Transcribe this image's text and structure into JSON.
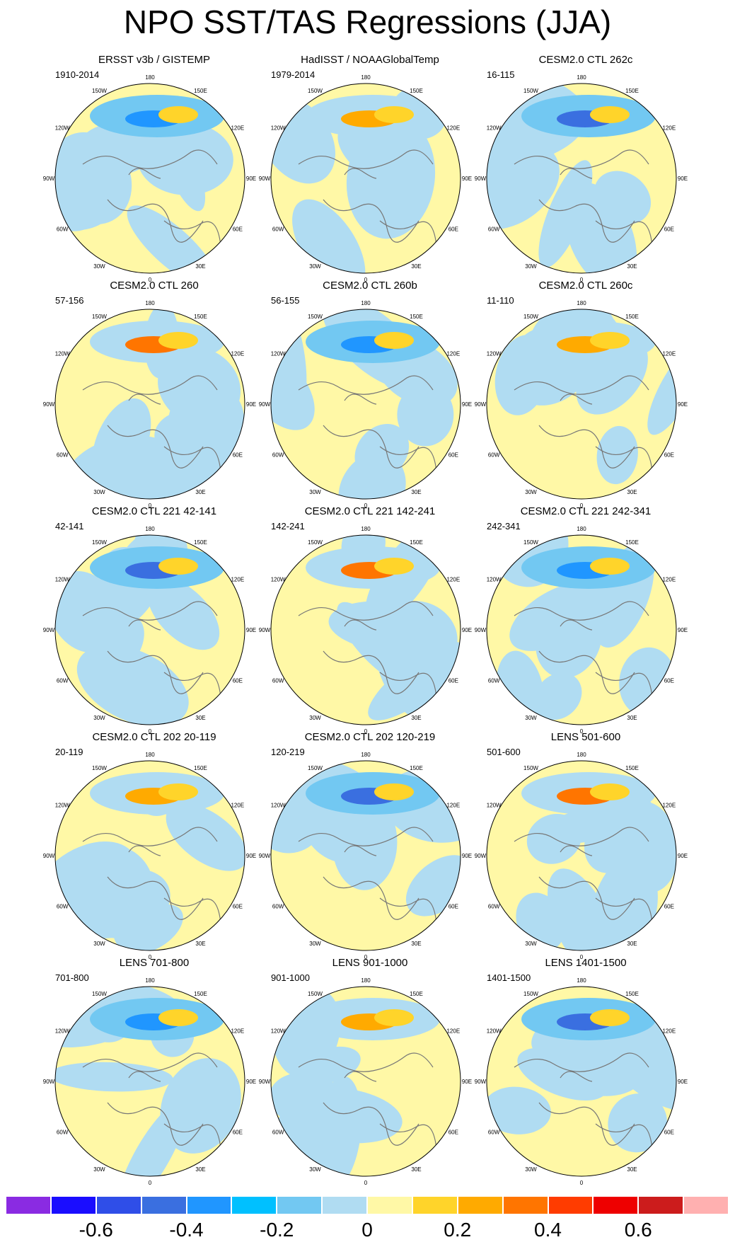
{
  "title": "NPO SST/TAS Regressions (JJA)",
  "longitude_labels": [
    "180",
    "150E",
    "120E",
    "90E",
    "60E",
    "30E",
    "0",
    "30W",
    "60W",
    "90W",
    "120W",
    "150W"
  ],
  "chart_data": {
    "type": "heatmap",
    "projection": "north-polar-stereographic",
    "panels": [
      {
        "title": "ERSST v3b / GISTEMP",
        "years": "1910-2014"
      },
      {
        "title": "HadISST / NOAAGlobalTemp",
        "years": "1979-2014"
      },
      {
        "title": "CESM2.0 CTL 262c",
        "years": "16-115"
      },
      {
        "title": "CESM2.0 CTL 260",
        "years": "57-156"
      },
      {
        "title": "CESM2.0 CTL 260b",
        "years": "56-155"
      },
      {
        "title": "CESM2.0 CTL 260c",
        "years": "11-110"
      },
      {
        "title": "CESM2.0 CTL 221 42-141",
        "years": "42-141"
      },
      {
        "title": "CESM2.0 CTL 221 142-241",
        "years": "142-241"
      },
      {
        "title": "CESM2.0 CTL 221 242-341",
        "years": "242-341"
      },
      {
        "title": "CESM2.0 CTL 202 20-119",
        "years": "20-119"
      },
      {
        "title": "CESM2.0 CTL 202 120-219",
        "years": "120-219"
      },
      {
        "title": "LENS 501-600",
        "years": "501-600"
      },
      {
        "title": "LENS 701-800",
        "years": "701-800"
      },
      {
        "title": "LENS 901-1000",
        "years": "901-1000"
      },
      {
        "title": "LENS 1401-1500",
        "years": "1401-1500"
      }
    ],
    "colorbar": {
      "levels": [
        -0.7,
        -0.6,
        -0.5,
        -0.4,
        -0.3,
        -0.2,
        -0.1,
        0,
        0.1,
        0.2,
        0.3,
        0.4,
        0.5,
        0.6,
        0.7
      ],
      "colors": [
        "#8a2be2",
        "#1a0dff",
        "#2f4ee8",
        "#3a6fe0",
        "#2096ff",
        "#00c0ff",
        "#72c8f2",
        "#b0dcf2",
        "#fff8a6",
        "#ffd42a",
        "#ffaa00",
        "#ff7500",
        "#ff3c00",
        "#ee0000",
        "#cc1c1c",
        "#ffb0b0"
      ],
      "labels": [
        "-0.6",
        "-0.4",
        "-0.2",
        "0",
        "0.2",
        "0.4",
        "0.6"
      ]
    }
  }
}
